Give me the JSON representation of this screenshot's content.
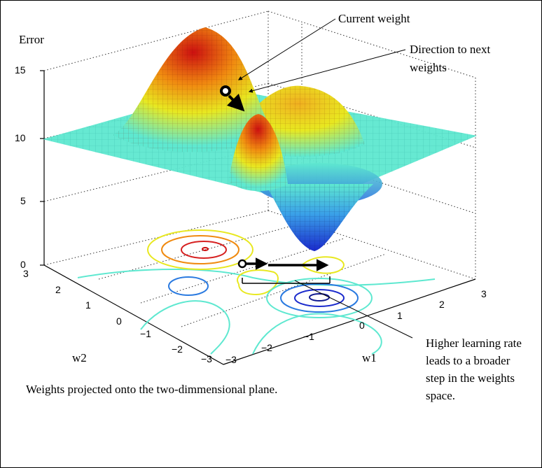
{
  "axes": {
    "z_label": "Error",
    "x_label": "w1",
    "y_label": "w2",
    "z_ticks": [
      "15",
      "10",
      "5",
      "0"
    ],
    "x_ticks": [
      "−3",
      "−2",
      "−1",
      "0",
      "1",
      "2",
      "3"
    ],
    "y_ticks": [
      "3",
      "2",
      "1",
      "0",
      "−1",
      "−2",
      "−3"
    ]
  },
  "annotations": {
    "current_weight": "Current weight",
    "direction_line1": "Direction to next",
    "direction_line2": "weights",
    "higher_rate_line1": "Higher learning rate",
    "higher_rate_line2": "leads to a broader",
    "higher_rate_line3": "step in the weights",
    "higher_rate_line4": "space.",
    "projection": "Weights projected onto the two-dimmensional plane."
  },
  "colors": {
    "surface_high": "#cc1010",
    "surface_mid": "#e8e820",
    "surface_plane": "#5ee8d0",
    "surface_low": "#1a2acc",
    "arrows": "#000000"
  }
}
